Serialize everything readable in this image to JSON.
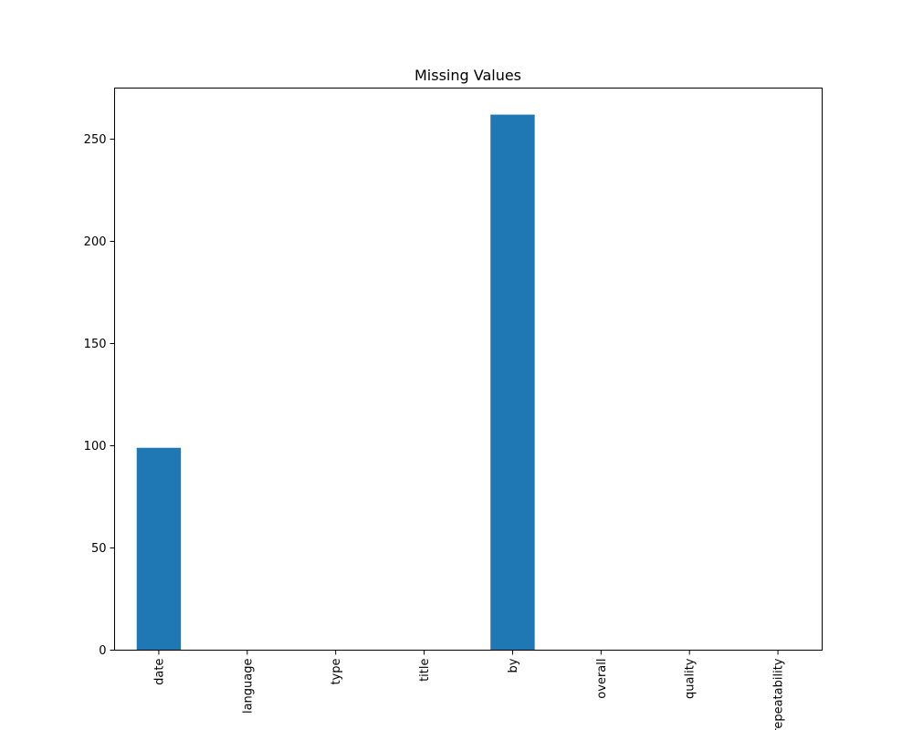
{
  "chart_data": {
    "type": "bar",
    "title": "Missing Values",
    "xlabel": "",
    "ylabel": "",
    "categories": [
      "date",
      "language",
      "type",
      "title",
      "by",
      "overall",
      "quality",
      "repeatability"
    ],
    "values": [
      99,
      0,
      0,
      0,
      262,
      0,
      0,
      0
    ],
    "ylim": [
      0,
      275
    ],
    "yticks": [
      0,
      50,
      100,
      150,
      200,
      250
    ],
    "grid": false,
    "bar_color": "#1f77b4"
  }
}
